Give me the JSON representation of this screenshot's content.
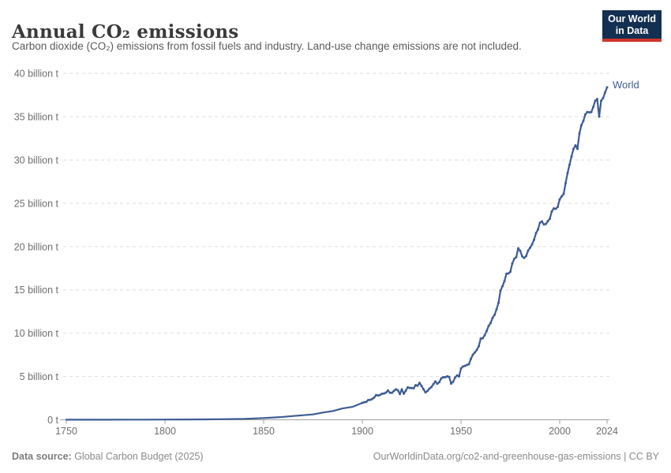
{
  "header": {
    "title": "Annual CO₂ emissions",
    "subtitle": "Carbon dioxide (CO₂) emissions from fossil fuels and industry. Land-use change emissions are not included."
  },
  "logo": {
    "line1": "Our World",
    "line2": "in Data",
    "bg_color": "#132f51",
    "accent_color": "#d0342c"
  },
  "footer": {
    "source_label": "Data source:",
    "source_value": " Global Carbon Budget (2025)",
    "credit": "OurWorldinData.org/co2-and-greenhouse-gas-emissions | CC BY"
  },
  "chart_data": {
    "type": "line",
    "title": "Annual CO₂ emissions",
    "xlabel": "",
    "ylabel": "",
    "unit": "billion t",
    "grid": "horizontal dashed",
    "legend_position": "end-of-line",
    "line_color": "#3d5c94",
    "grid_color": "#dedede",
    "axis_color": "#9e9e9e",
    "tick_label_color": "#6e6e6e",
    "xlim": [
      1750,
      2024
    ],
    "ylim": [
      0,
      40
    ],
    "x_ticks": [
      1750,
      1800,
      1850,
      1900,
      1950,
      2000,
      2024
    ],
    "y_ticks": [
      {
        "value": 0,
        "label": "0 t"
      },
      {
        "value": 5,
        "label": "5 billion t"
      },
      {
        "value": 10,
        "label": "10 billion t"
      },
      {
        "value": 15,
        "label": "15 billion t"
      },
      {
        "value": 20,
        "label": "20 billion t"
      },
      {
        "value": 25,
        "label": "25 billion t"
      },
      {
        "value": 30,
        "label": "30 billion t"
      },
      {
        "value": 35,
        "label": "35 billion t"
      },
      {
        "value": 40,
        "label": "40 billion t"
      }
    ],
    "series": [
      {
        "name": "World",
        "points": [
          [
            1750,
            0.009
          ],
          [
            1760,
            0.011
          ],
          [
            1770,
            0.013
          ],
          [
            1780,
            0.016
          ],
          [
            1790,
            0.02
          ],
          [
            1800,
            0.03
          ],
          [
            1810,
            0.04
          ],
          [
            1820,
            0.05
          ],
          [
            1830,
            0.07
          ],
          [
            1840,
            0.11
          ],
          [
            1850,
            0.2
          ],
          [
            1855,
            0.26
          ],
          [
            1860,
            0.34
          ],
          [
            1865,
            0.44
          ],
          [
            1870,
            0.53
          ],
          [
            1875,
            0.62
          ],
          [
            1880,
            0.84
          ],
          [
            1885,
            1.01
          ],
          [
            1890,
            1.31
          ],
          [
            1895,
            1.49
          ],
          [
            1900,
            1.96
          ],
          [
            1901,
            2.02
          ],
          [
            1902,
            2.08
          ],
          [
            1903,
            2.28
          ],
          [
            1904,
            2.3
          ],
          [
            1905,
            2.4
          ],
          [
            1906,
            2.57
          ],
          [
            1907,
            2.86
          ],
          [
            1908,
            2.8
          ],
          [
            1909,
            2.88
          ],
          [
            1910,
            3.0
          ],
          [
            1911,
            3.04
          ],
          [
            1912,
            3.14
          ],
          [
            1913,
            3.39
          ],
          [
            1914,
            3.11
          ],
          [
            1915,
            3.12
          ],
          [
            1916,
            3.33
          ],
          [
            1917,
            3.51
          ],
          [
            1918,
            3.41
          ],
          [
            1919,
            2.98
          ],
          [
            1920,
            3.51
          ],
          [
            1921,
            3.01
          ],
          [
            1922,
            3.36
          ],
          [
            1923,
            3.74
          ],
          [
            1924,
            3.68
          ],
          [
            1925,
            3.66
          ],
          [
            1926,
            3.64
          ],
          [
            1927,
            4.0
          ],
          [
            1928,
            3.94
          ],
          [
            1929,
            4.25
          ],
          [
            1930,
            3.91
          ],
          [
            1931,
            3.52
          ],
          [
            1932,
            3.16
          ],
          [
            1933,
            3.33
          ],
          [
            1934,
            3.6
          ],
          [
            1935,
            3.78
          ],
          [
            1936,
            4.12
          ],
          [
            1937,
            4.42
          ],
          [
            1938,
            4.16
          ],
          [
            1939,
            4.34
          ],
          [
            1940,
            4.79
          ],
          [
            1941,
            4.92
          ],
          [
            1942,
            4.92
          ],
          [
            1943,
            5.02
          ],
          [
            1944,
            4.95
          ],
          [
            1945,
            4.18
          ],
          [
            1946,
            4.39
          ],
          [
            1947,
            4.88
          ],
          [
            1948,
            5.12
          ],
          [
            1949,
            5.01
          ],
          [
            1950,
            5.93
          ],
          [
            1951,
            6.15
          ],
          [
            1952,
            6.23
          ],
          [
            1953,
            6.34
          ],
          [
            1954,
            6.42
          ],
          [
            1955,
            7.03
          ],
          [
            1956,
            7.51
          ],
          [
            1957,
            7.77
          ],
          [
            1958,
            8.07
          ],
          [
            1959,
            8.5
          ],
          [
            1960,
            9.39
          ],
          [
            1961,
            9.41
          ],
          [
            1962,
            9.76
          ],
          [
            1963,
            10.27
          ],
          [
            1964,
            10.84
          ],
          [
            1965,
            11.19
          ],
          [
            1966,
            11.76
          ],
          [
            1967,
            12.12
          ],
          [
            1968,
            12.75
          ],
          [
            1969,
            13.51
          ],
          [
            1970,
            14.9
          ],
          [
            1971,
            15.42
          ],
          [
            1972,
            16.01
          ],
          [
            1973,
            16.86
          ],
          [
            1974,
            16.9
          ],
          [
            1975,
            17.09
          ],
          [
            1976,
            18.06
          ],
          [
            1977,
            18.6
          ],
          [
            1978,
            18.79
          ],
          [
            1979,
            19.8
          ],
          [
            1980,
            19.5
          ],
          [
            1981,
            18.87
          ],
          [
            1982,
            18.69
          ],
          [
            1983,
            18.91
          ],
          [
            1984,
            19.54
          ],
          [
            1985,
            19.86
          ],
          [
            1986,
            20.26
          ],
          [
            1987,
            20.78
          ],
          [
            1988,
            21.56
          ],
          [
            1989,
            21.98
          ],
          [
            1990,
            22.76
          ],
          [
            1991,
            22.9
          ],
          [
            1992,
            22.55
          ],
          [
            1993,
            22.61
          ],
          [
            1994,
            22.94
          ],
          [
            1995,
            23.21
          ],
          [
            1996,
            24.06
          ],
          [
            1997,
            24.41
          ],
          [
            1998,
            24.36
          ],
          [
            1999,
            24.58
          ],
          [
            2000,
            25.45
          ],
          [
            2001,
            25.8
          ],
          [
            2002,
            26.07
          ],
          [
            2003,
            27.32
          ],
          [
            2004,
            28.49
          ],
          [
            2005,
            29.46
          ],
          [
            2006,
            30.41
          ],
          [
            2007,
            31.28
          ],
          [
            2008,
            31.69
          ],
          [
            2009,
            31.28
          ],
          [
            2010,
            33.07
          ],
          [
            2011,
            34.02
          ],
          [
            2012,
            34.52
          ],
          [
            2013,
            35.27
          ],
          [
            2014,
            35.54
          ],
          [
            2015,
            35.5
          ],
          [
            2016,
            35.52
          ],
          [
            2017,
            36.1
          ],
          [
            2018,
            36.83
          ],
          [
            2019,
            37.04
          ],
          [
            2020,
            35.01
          ],
          [
            2021,
            36.83
          ],
          [
            2022,
            37.15
          ],
          [
            2023,
            37.79
          ],
          [
            2024,
            38.4
          ]
        ]
      }
    ]
  }
}
